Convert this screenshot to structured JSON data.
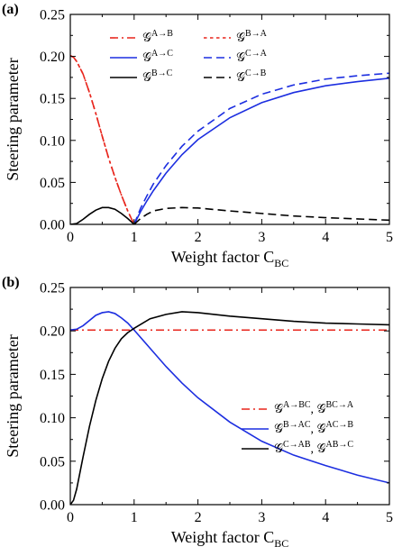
{
  "chart_data": [
    {
      "type": "line",
      "panel_label": "(a)",
      "xlabel": "Weight factor C",
      "xlabel_sub": "BC",
      "ylabel": "Steering parameter",
      "xlim": [
        0,
        5
      ],
      "ylim": [
        0,
        0.25
      ],
      "xticks": [
        "0",
        "1",
        "2",
        "3",
        "4",
        "5"
      ],
      "yticks": [
        "0.00",
        "0.05",
        "0.10",
        "0.15",
        "0.20",
        "0.25"
      ],
      "legend_placement": "top-left",
      "legend_columns": 2,
      "series": [
        {
          "name": "𝒢",
          "sup": "A→B",
          "color": "#e8251c",
          "style": "dashdot",
          "x": [
            0,
            0.05,
            0.1,
            0.2,
            0.3,
            0.4,
            0.5,
            0.6,
            0.7,
            0.8,
            0.9,
            0.95,
            1.0
          ],
          "y": [
            0.201,
            0.199,
            0.194,
            0.179,
            0.157,
            0.132,
            0.105,
            0.079,
            0.056,
            0.035,
            0.016,
            0.008,
            0.0
          ]
        },
        {
          "name": "𝒢",
          "sup": "B→A",
          "color": "#e8251c",
          "style": "dotted",
          "x": [
            0,
            0.05,
            0.1,
            0.2,
            0.3,
            0.4,
            0.5,
            0.6,
            0.7,
            0.8,
            0.9,
            0.95,
            1.0
          ],
          "y": [
            0.201,
            0.199,
            0.194,
            0.179,
            0.157,
            0.132,
            0.105,
            0.079,
            0.056,
            0.035,
            0.016,
            0.008,
            0.0
          ]
        },
        {
          "name": "𝒢",
          "sup": "A→C",
          "color": "#1c2ee0",
          "style": "solid",
          "x": [
            1.0,
            1.1,
            1.2,
            1.3,
            1.5,
            1.75,
            2.0,
            2.5,
            3.0,
            3.5,
            4.0,
            4.5,
            5.0
          ],
          "y": [
            0.0,
            0.015,
            0.028,
            0.04,
            0.061,
            0.083,
            0.101,
            0.127,
            0.145,
            0.157,
            0.165,
            0.17,
            0.174
          ]
        },
        {
          "name": "𝒢",
          "sup": "C→A",
          "color": "#1c2ee0",
          "style": "dashed",
          "x": [
            1.0,
            1.1,
            1.2,
            1.3,
            1.5,
            1.75,
            2.0,
            2.5,
            3.0,
            3.5,
            4.0,
            4.5,
            5.0
          ],
          "y": [
            0.0,
            0.019,
            0.034,
            0.048,
            0.07,
            0.093,
            0.111,
            0.138,
            0.155,
            0.166,
            0.173,
            0.177,
            0.18
          ]
        },
        {
          "name": "𝒢",
          "sup": "B→C",
          "color": "#000000",
          "style": "solid",
          "x": [
            0,
            0.1,
            0.2,
            0.3,
            0.4,
            0.5,
            0.6,
            0.7,
            0.8,
            0.9,
            1.0
          ],
          "y": [
            0.0,
            0.001,
            0.006,
            0.012,
            0.017,
            0.02,
            0.02,
            0.018,
            0.013,
            0.007,
            0.0
          ]
        },
        {
          "name": "𝒢",
          "sup": "C→B",
          "color": "#000000",
          "style": "dashed",
          "x": [
            1.0,
            1.1,
            1.2,
            1.3,
            1.5,
            1.75,
            2.0,
            2.5,
            3.0,
            3.5,
            4.0,
            4.5,
            5.0
          ],
          "y": [
            0.0,
            0.007,
            0.012,
            0.016,
            0.019,
            0.02,
            0.0195,
            0.016,
            0.013,
            0.01,
            0.008,
            0.0065,
            0.005
          ]
        }
      ]
    },
    {
      "type": "line",
      "panel_label": "(b)",
      "xlabel": "Weight factor C",
      "xlabel_sub": "BC",
      "ylabel": "Steering parameter",
      "xlim": [
        0,
        5
      ],
      "ylim": [
        0,
        0.25
      ],
      "xticks": [
        "0",
        "1",
        "2",
        "3",
        "4",
        "5"
      ],
      "yticks": [
        "0.00",
        "0.05",
        "0.10",
        "0.15",
        "0.20",
        "0.25"
      ],
      "legend_placement": "right",
      "legend_columns": 1,
      "series": [
        {
          "name": "𝒢",
          "sup": "A→BC",
          "name2": "𝒢",
          "sup2": "BC→A",
          "color": "#e8251c",
          "style": "dashdot",
          "x": [
            0,
            5
          ],
          "y": [
            0.201,
            0.201
          ]
        },
        {
          "name": "𝒢",
          "sup": "B→AC",
          "name2": "𝒢",
          "sup2": "AC→B",
          "color": "#1c2ee0",
          "style": "solid",
          "x": [
            0,
            0.1,
            0.2,
            0.3,
            0.4,
            0.5,
            0.6,
            0.7,
            0.8,
            0.9,
            1.0,
            1.25,
            1.5,
            1.75,
            2.0,
            2.5,
            3.0,
            3.5,
            4.0,
            4.5,
            5.0
          ],
          "y": [
            0.201,
            0.202,
            0.206,
            0.212,
            0.218,
            0.221,
            0.222,
            0.22,
            0.215,
            0.209,
            0.201,
            0.18,
            0.159,
            0.14,
            0.123,
            0.095,
            0.073,
            0.057,
            0.045,
            0.034,
            0.025
          ]
        },
        {
          "name": "𝒢",
          "sup": "C→AB",
          "name2": "𝒢",
          "sup2": "AB→C",
          "color": "#000000",
          "style": "solid",
          "x": [
            0,
            0.05,
            0.1,
            0.2,
            0.3,
            0.4,
            0.5,
            0.6,
            0.7,
            0.8,
            0.9,
            1.0,
            1.25,
            1.5,
            1.75,
            2.0,
            2.5,
            3.0,
            3.5,
            4.0,
            4.5,
            5.0
          ],
          "y": [
            0.0,
            0.005,
            0.018,
            0.055,
            0.09,
            0.12,
            0.145,
            0.165,
            0.18,
            0.191,
            0.198,
            0.203,
            0.214,
            0.219,
            0.222,
            0.221,
            0.217,
            0.214,
            0.211,
            0.209,
            0.208,
            0.207
          ]
        }
      ]
    }
  ]
}
